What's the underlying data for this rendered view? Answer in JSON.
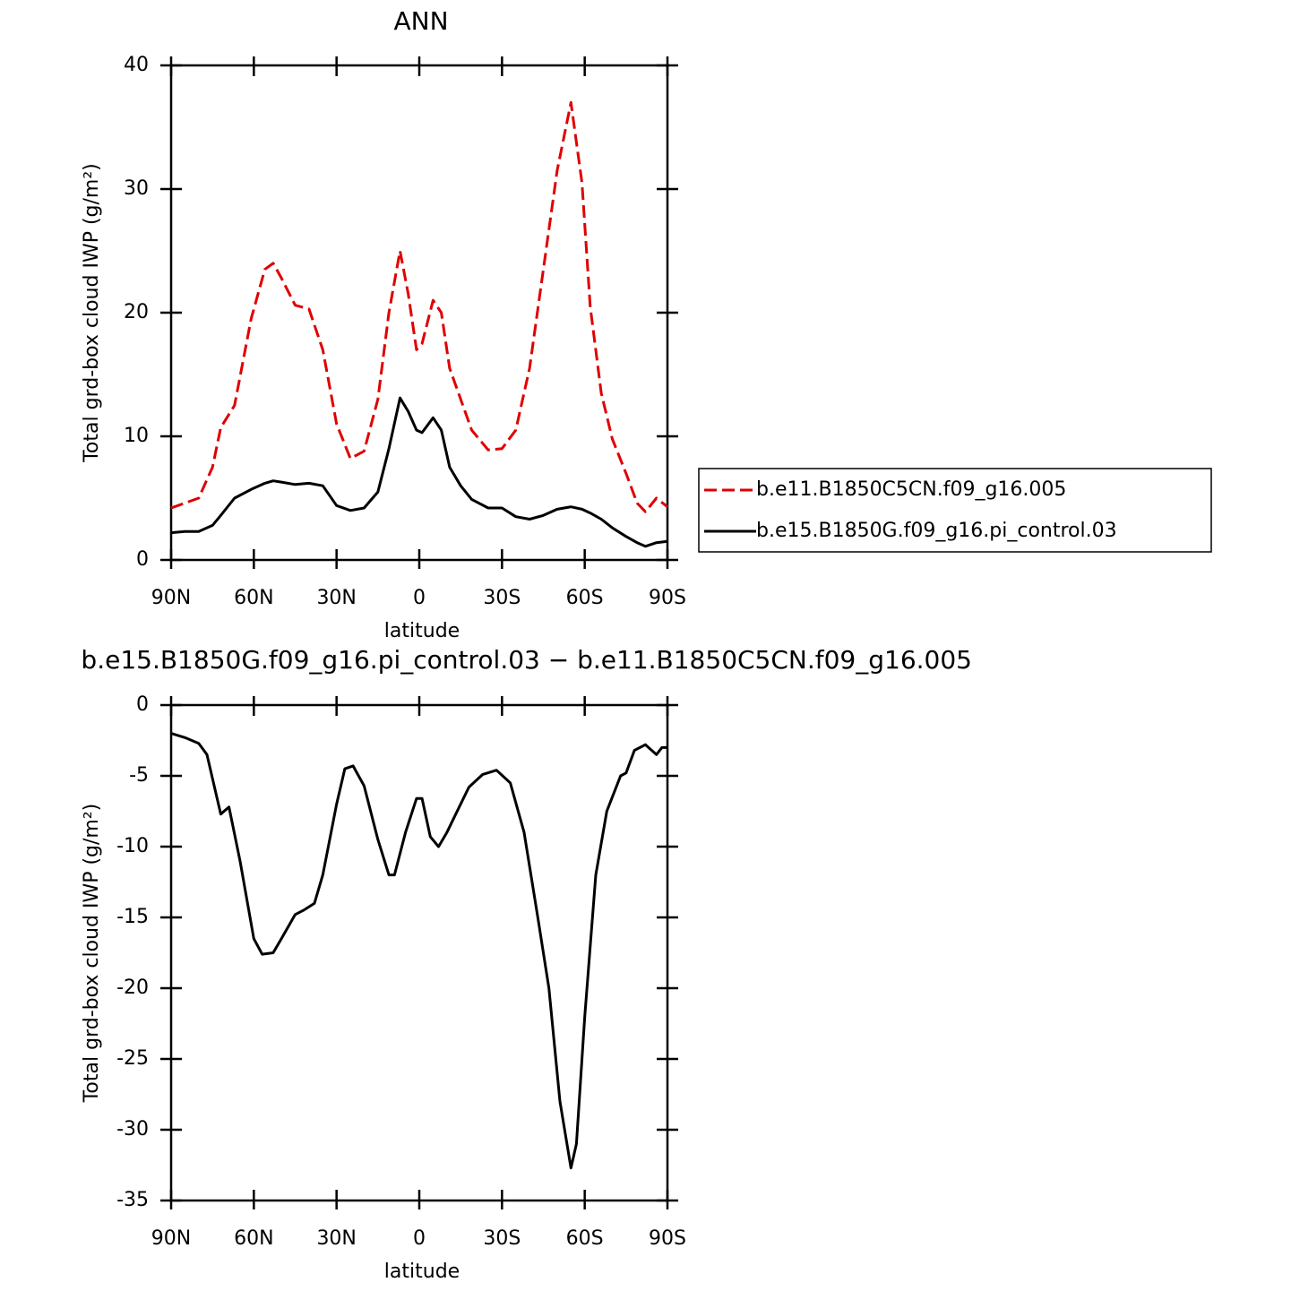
{
  "chart_data": [
    {
      "type": "line",
      "title": "ANN",
      "xlabel": "latitude",
      "ylabel": "Total grd-box cloud IWP (g/m²)",
      "x": [
        90,
        85,
        80,
        75,
        72,
        67,
        61,
        56,
        53,
        50,
        45,
        40,
        35,
        30,
        25,
        20,
        15,
        11,
        7,
        4,
        1,
        -1,
        -5,
        -8,
        -11,
        -15,
        -19,
        -25,
        -30,
        -35,
        -40,
        -45,
        -50,
        -55,
        -59,
        -62,
        -66,
        -70,
        -75,
        -79,
        -82,
        -86,
        -90
      ],
      "series": [
        {
          "name": "b.e11.B1850C5CN.f09_g16.005",
          "color": "#e00000",
          "line_style": "dashed",
          "values": [
            4.2,
            4.6,
            5.0,
            7.5,
            10.7,
            12.5,
            19.5,
            23.5,
            24.0,
            22.8,
            20.6,
            20.3,
            17,
            11,
            8.2,
            8.8,
            13,
            20,
            25,
            21.5,
            17,
            17.5,
            21,
            20,
            15.5,
            13,
            10.5,
            8.9,
            9.0,
            10.5,
            15.5,
            23.5,
            31.5,
            37,
            30.5,
            20.5,
            13.5,
            9.8,
            7.0,
            4.6,
            3.9,
            5.0,
            4.3
          ]
        },
        {
          "name": "b.e15.B1850G.f09_g16.pi_control.03",
          "color": "#000000",
          "line_style": "solid",
          "values": [
            2.2,
            2.3,
            2.3,
            2.8,
            3.6,
            5.0,
            5.7,
            6.2,
            6.4,
            6.3,
            6.1,
            6.2,
            6.0,
            4.4,
            4.0,
            4.2,
            5.5,
            9,
            13.1,
            12,
            10.5,
            10.3,
            11.5,
            10.5,
            7.5,
            6.0,
            4.9,
            4.2,
            4.2,
            3.5,
            3.3,
            3.6,
            4.1,
            4.3,
            4.1,
            3.8,
            3.3,
            2.6,
            1.9,
            1.4,
            1.1,
            1.4,
            1.5
          ]
        }
      ],
      "xlim": [
        90,
        -90
      ],
      "xticks": [
        {
          "value": 90,
          "label": "90N"
        },
        {
          "value": 60,
          "label": "60N"
        },
        {
          "value": 30,
          "label": "30N"
        },
        0,
        {
          "value": -30,
          "label": "30S"
        },
        {
          "value": -60,
          "label": "60S"
        },
        {
          "value": -90,
          "label": "90S"
        }
      ],
      "ylim": [
        0,
        40
      ],
      "yticks": [
        0,
        10,
        20,
        30,
        40
      ],
      "legend": "outside-right"
    },
    {
      "type": "line",
      "title": "b.e15.B1850G.f09_g16.pi_control.03 − b.e11.B1850C5CN.f09_g16.005",
      "xlabel": "latitude",
      "ylabel": "Total grd-box cloud IWP (g/m²)",
      "x": [
        90,
        85,
        80,
        77,
        72,
        69,
        65,
        60,
        57,
        53,
        50,
        45,
        42,
        38,
        35,
        30,
        27,
        24,
        20,
        15,
        11,
        9,
        5,
        1,
        -1,
        -4,
        -7,
        -10,
        -13,
        -18,
        -23,
        -28,
        -33,
        -38,
        -43,
        -47,
        -51,
        -55,
        -57,
        -60,
        -64,
        -68,
        -73,
        -75,
        -78,
        -82,
        -86,
        -88,
        -90
      ],
      "series": [
        {
          "color": "#000000",
          "line_style": "solid",
          "values": [
            -2,
            -2.3,
            -2.7,
            -3.5,
            -7.7,
            -7.2,
            -11,
            -16.5,
            -17.6,
            -17.5,
            -16.5,
            -14.8,
            -14.5,
            -14,
            -12,
            -7,
            -4.5,
            -4.3,
            -5.7,
            -9.5,
            -12,
            -12,
            -9,
            -6.6,
            -6.6,
            -9.3,
            -10,
            -9,
            -7.8,
            -5.8,
            -4.9,
            -4.6,
            -5.5,
            -9,
            -15,
            -20,
            -28,
            -32.7,
            -31,
            -22,
            -12,
            -7.5,
            -5,
            -4.8,
            -3.2,
            -2.8,
            -3.5,
            -3,
            -3
          ]
        }
      ],
      "xlim": [
        90,
        -90
      ],
      "xticks": [
        {
          "value": 90,
          "label": "90N"
        },
        {
          "value": 60,
          "label": "60N"
        },
        {
          "value": 30,
          "label": "30N"
        },
        0,
        {
          "value": -30,
          "label": "30S"
        },
        {
          "value": -60,
          "label": "60S"
        },
        {
          "value": -90,
          "label": "90S"
        }
      ],
      "ylim": [
        -35,
        0
      ],
      "yticks": [
        -35,
        -30,
        -25,
        -20,
        -15,
        -10,
        -5,
        0
      ]
    }
  ]
}
